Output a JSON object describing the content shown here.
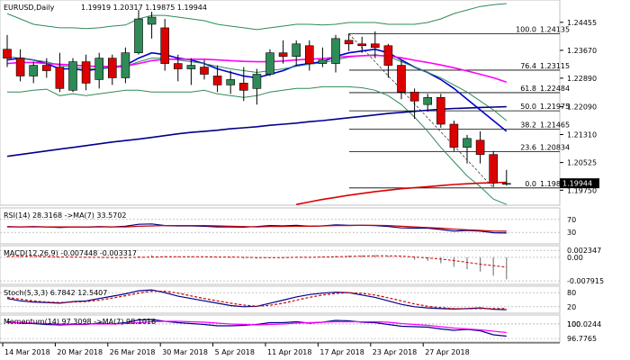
{
  "chart_data": [
    {
      "type": "candlestick",
      "symbol": "EURUSD",
      "timeframe": "Daily",
      "header_title": "EURUSD,Daily",
      "header_ohlc": "1.19919 1.20317 1.19875 1.19944",
      "current_price": "1.19944",
      "ylim": [
        1.1938,
        1.2503
      ],
      "y_ticks": [
        {
          "value": 1.24455,
          "label": "1.24455"
        },
        {
          "value": 1.2367,
          "label": "1.23670"
        },
        {
          "value": 1.2289,
          "label": "1.22890"
        },
        {
          "value": 1.2209,
          "label": "1.22090"
        },
        {
          "value": 1.2131,
          "label": "1.21310"
        },
        {
          "value": 1.20525,
          "label": "1.20525"
        },
        {
          "value": 1.1975,
          "label": "1.19750"
        }
      ],
      "x_ticks": [
        "14 Mar 2018",
        "20 Mar 2018",
        "26 Mar 2018",
        "30 Mar 2018",
        "5 Apr 2018",
        "11 Apr 2018",
        "17 Apr 2018",
        "23 Apr 2018",
        "27 Apr 2018"
      ],
      "candles": [
        {
          "o": 1.237,
          "h": 1.241,
          "l": 1.232,
          "c": 1.2345
        },
        {
          "o": 1.2345,
          "h": 1.237,
          "l": 1.228,
          "c": 1.2295
        },
        {
          "o": 1.2295,
          "h": 1.2335,
          "l": 1.2275,
          "c": 1.2325
        },
        {
          "o": 1.2325,
          "h": 1.2345,
          "l": 1.229,
          "c": 1.231
        },
        {
          "o": 1.232,
          "h": 1.236,
          "l": 1.225,
          "c": 1.226
        },
        {
          "o": 1.2255,
          "h": 1.2345,
          "l": 1.225,
          "c": 1.2335
        },
        {
          "o": 1.2335,
          "h": 1.2355,
          "l": 1.2255,
          "c": 1.2275
        },
        {
          "o": 1.2285,
          "h": 1.236,
          "l": 1.226,
          "c": 1.2345
        },
        {
          "o": 1.2345,
          "h": 1.2355,
          "l": 1.227,
          "c": 1.229
        },
        {
          "o": 1.229,
          "h": 1.2375,
          "l": 1.2275,
          "c": 1.236
        },
        {
          "o": 1.236,
          "h": 1.248,
          "l": 1.2355,
          "c": 1.2455
        },
        {
          "o": 1.244,
          "h": 1.2475,
          "l": 1.24,
          "c": 1.246
        },
        {
          "o": 1.243,
          "h": 1.2455,
          "l": 1.231,
          "c": 1.233
        },
        {
          "o": 1.233,
          "h": 1.2355,
          "l": 1.228,
          "c": 1.2315
        },
        {
          "o": 1.2315,
          "h": 1.2345,
          "l": 1.227,
          "c": 1.2325
        },
        {
          "o": 1.232,
          "h": 1.234,
          "l": 1.2285,
          "c": 1.23
        },
        {
          "o": 1.2295,
          "h": 1.2325,
          "l": 1.225,
          "c": 1.227
        },
        {
          "o": 1.227,
          "h": 1.231,
          "l": 1.2245,
          "c": 1.2285
        },
        {
          "o": 1.2275,
          "h": 1.232,
          "l": 1.2225,
          "c": 1.2255
        },
        {
          "o": 1.226,
          "h": 1.2315,
          "l": 1.2215,
          "c": 1.23
        },
        {
          "o": 1.23,
          "h": 1.237,
          "l": 1.2295,
          "c": 1.236
        },
        {
          "o": 1.236,
          "h": 1.2395,
          "l": 1.233,
          "c": 1.235
        },
        {
          "o": 1.235,
          "h": 1.2395,
          "l": 1.2325,
          "c": 1.2385
        },
        {
          "o": 1.238,
          "h": 1.2395,
          "l": 1.231,
          "c": 1.233
        },
        {
          "o": 1.233,
          "h": 1.2375,
          "l": 1.232,
          "c": 1.234
        },
        {
          "o": 1.233,
          "h": 1.241,
          "l": 1.2305,
          "c": 1.24
        },
        {
          "o": 1.2395,
          "h": 1.2414,
          "l": 1.2365,
          "c": 1.2385
        },
        {
          "o": 1.2385,
          "h": 1.2405,
          "l": 1.236,
          "c": 1.238
        },
        {
          "o": 1.2385,
          "h": 1.242,
          "l": 1.2345,
          "c": 1.2375
        },
        {
          "o": 1.238,
          "h": 1.2385,
          "l": 1.229,
          "c": 1.2325
        },
        {
          "o": 1.2325,
          "h": 1.234,
          "l": 1.223,
          "c": 1.225
        },
        {
          "o": 1.225,
          "h": 1.226,
          "l": 1.2175,
          "c": 1.2225
        },
        {
          "o": 1.2215,
          "h": 1.2245,
          "l": 1.2195,
          "c": 1.2235
        },
        {
          "o": 1.2235,
          "h": 1.2245,
          "l": 1.215,
          "c": 1.216
        },
        {
          "o": 1.216,
          "h": 1.217,
          "l": 1.2085,
          "c": 1.2095
        },
        {
          "o": 1.2095,
          "h": 1.213,
          "l": 1.205,
          "c": 1.212
        },
        {
          "o": 1.2115,
          "h": 1.214,
          "l": 1.205,
          "c": 1.2075
        },
        {
          "o": 1.2075,
          "h": 1.2085,
          "l": 1.1984,
          "c": 1.1995
        },
        {
          "o": 1.1992,
          "h": 1.2032,
          "l": 1.1988,
          "c": 1.1994
        }
      ],
      "fibonacci": [
        {
          "label": "100.0",
          "value": 1.24135,
          "text": "1.24135"
        },
        {
          "label": "76.4",
          "value": 1.23115,
          "text": "1.23115"
        },
        {
          "label": "61.8",
          "value": 1.22484,
          "text": "1.22484"
        },
        {
          "label": "50.0",
          "value": 1.21975,
          "text": "1.21975"
        },
        {
          "label": "38.2",
          "value": 1.21465,
          "text": "1.21465"
        },
        {
          "label": "23.6",
          "value": 1.20834,
          "text": "1.20834"
        },
        {
          "label": "0.0",
          "value": 1.19814,
          "text": "1.19814"
        }
      ],
      "overlays": [
        {
          "color": "#2e8b57",
          "values": [
            1.247,
            1.2455,
            1.244,
            1.2435,
            1.243,
            1.243,
            1.2428,
            1.243,
            1.2435,
            1.2438,
            1.2455,
            1.2465,
            1.2465,
            1.246,
            1.2455,
            1.245,
            1.244,
            1.2435,
            1.243,
            1.2425,
            1.243,
            1.2435,
            1.244,
            1.244,
            1.2438,
            1.244,
            1.2445,
            1.2445,
            1.2445,
            1.244,
            1.244,
            1.244,
            1.2445,
            1.2455,
            1.247,
            1.248,
            1.249,
            1.2495,
            1.2498
          ]
        },
        {
          "color": "#2e8b57",
          "values": [
            1.225,
            1.225,
            1.2255,
            1.2258,
            1.224,
            1.2245,
            1.224,
            1.2245,
            1.225,
            1.2255,
            1.2255,
            1.225,
            1.225,
            1.225,
            1.225,
            1.2255,
            1.2245,
            1.224,
            1.2235,
            1.224,
            1.225,
            1.2255,
            1.226,
            1.226,
            1.2265,
            1.2265,
            1.2265,
            1.2262,
            1.2255,
            1.224,
            1.2215,
            1.218,
            1.214,
            1.2095,
            1.2055,
            1.2015,
            1.1985,
            1.195,
            1.1935
          ]
        },
        {
          "color": "#0000cd",
          "values": [
            1.234,
            1.2345,
            1.234,
            1.233,
            1.2315,
            1.2315,
            1.231,
            1.2315,
            1.232,
            1.2325,
            1.2345,
            1.236,
            1.2355,
            1.2345,
            1.234,
            1.233,
            1.2315,
            1.2305,
            1.2295,
            1.229,
            1.23,
            1.231,
            1.2325,
            1.233,
            1.2335,
            1.235,
            1.236,
            1.2365,
            1.237,
            1.236,
            1.234,
            1.232,
            1.2305,
            1.2285,
            1.226,
            1.223,
            1.22,
            1.217,
            1.214
          ]
        },
        {
          "color": "#2e8b57",
          "values": [
            1.235,
            1.2345,
            1.234,
            1.2335,
            1.2325,
            1.232,
            1.2315,
            1.2315,
            1.2318,
            1.2322,
            1.2335,
            1.2345,
            1.2345,
            1.234,
            1.2335,
            1.233,
            1.2322,
            1.2315,
            1.231,
            1.2305,
            1.231,
            1.2315,
            1.2322,
            1.2328,
            1.2332,
            1.234,
            1.2348,
            1.2352,
            1.2355,
            1.235,
            1.2335,
            1.232,
            1.2305,
            1.229,
            1.227,
            1.225,
            1.2225,
            1.22,
            1.217
          ]
        },
        {
          "color": "#ff00ff",
          "values": [
            1.233,
            1.2333,
            1.2333,
            1.233,
            1.2328,
            1.2326,
            1.2323,
            1.2322,
            1.2322,
            1.2323,
            1.233,
            1.2338,
            1.2342,
            1.2342,
            1.2342,
            1.2342,
            1.234,
            1.2338,
            1.2336,
            1.2335,
            1.2335,
            1.2337,
            1.234,
            1.2342,
            1.2344,
            1.2347,
            1.235,
            1.2352,
            1.2353,
            1.2351,
            1.2346,
            1.2339,
            1.2333,
            1.2326,
            1.2318,
            1.2309,
            1.23,
            1.229,
            1.2278
          ]
        },
        {
          "color": "#00008b",
          "values": [
            1.207,
            1.2075,
            1.208,
            1.2085,
            1.209,
            1.2095,
            1.21,
            1.2105,
            1.211,
            1.2114,
            1.2118,
            1.2123,
            1.2128,
            1.2133,
            1.2137,
            1.214,
            1.2143,
            1.2147,
            1.215,
            1.2153,
            1.2157,
            1.216,
            1.2163,
            1.2167,
            1.217,
            1.2174,
            1.2178,
            1.2182,
            1.2186,
            1.219,
            1.2193,
            1.2196,
            1.2199,
            1.2202,
            1.2204,
            1.2205,
            1.2207,
            1.2208,
            1.2209
          ]
        },
        {
          "color": "#dd0000",
          "values": [
            null,
            null,
            null,
            null,
            null,
            null,
            null,
            null,
            null,
            null,
            null,
            null,
            null,
            null,
            null,
            null,
            null,
            null,
            null,
            null,
            null,
            null,
            1.1935,
            1.1942,
            1.1949,
            1.1955,
            1.1961,
            1.1966,
            1.1971,
            1.1975,
            1.1979,
            1.1982,
            1.1985,
            1.1988,
            1.1991,
            1.1993,
            1.1995,
            1.1996,
            1.1997
          ]
        }
      ]
    },
    {
      "type": "line",
      "name": "RSI",
      "title": "RSI(14) 28.3168 ->MA(7) 33.5702",
      "levels": [
        {
          "value": 70,
          "label": "70"
        },
        {
          "value": 30,
          "label": "30"
        }
      ],
      "ylim": [
        0,
        100
      ],
      "series": [
        {
          "color": "#00008b",
          "values": [
            48,
            47,
            48,
            47,
            45,
            47,
            46,
            48,
            47,
            49,
            55,
            56,
            51,
            50,
            50,
            49,
            47,
            47,
            46,
            48,
            51,
            50,
            52,
            49,
            50,
            53,
            52,
            52,
            51,
            48,
            44,
            43,
            43,
            39,
            34,
            36,
            34,
            29,
            28
          ]
        },
        {
          "color": "#cc0000",
          "values": [
            47,
            47,
            47,
            47,
            47,
            47,
            46,
            47,
            47,
            47,
            49,
            50,
            51,
            51,
            51,
            51,
            50,
            49,
            48,
            47,
            48,
            48,
            49,
            49,
            50,
            51,
            51,
            52,
            52,
            51,
            49,
            47,
            45,
            43,
            40,
            38,
            36,
            34,
            33.6
          ]
        }
      ]
    },
    {
      "type": "bar",
      "name": "MACD",
      "title": "MACD(12,26,9) -0.007448 -0.003317",
      "levels": [
        {
          "value": 0.002347,
          "label": "0.002347"
        },
        {
          "value": 0,
          "label": "0.00"
        },
        {
          "value": -0.007915,
          "label": "-0.007915"
        }
      ],
      "ylim": [
        -0.0085,
        0.003
      ],
      "values": [
        0.0004,
        0.0003,
        0.0002,
        0.0001,
        -0.0002,
        -0.0001,
        -0.0002,
        -0.0001,
        -0.0002,
        0.0,
        0.0004,
        0.0007,
        0.0004,
        0.0003,
        0.0002,
        0.0001,
        -0.0001,
        -0.0002,
        -0.0004,
        -0.0004,
        -0.0002,
        -0.0001,
        0.0002,
        0.0002,
        0.0002,
        0.0005,
        0.0006,
        0.0007,
        0.0008,
        0.0004,
        -0.0002,
        -0.0008,
        -0.0012,
        -0.002,
        -0.0032,
        -0.004,
        -0.0048,
        -0.0062,
        -0.0074
      ],
      "signal": [
        0.0003,
        0.0003,
        0.0003,
        0.0002,
        0.0001,
        0.0001,
        0.0,
        0.0,
        -0.0001,
        -0.0001,
        0.0,
        0.0001,
        0.0002,
        0.0002,
        0.0002,
        0.0002,
        0.0001,
        0.0001,
        0.0,
        -0.0001,
        -0.0001,
        -0.0001,
        0.0,
        0.0,
        0.0001,
        0.0002,
        0.0003,
        0.0004,
        0.0005,
        0.0005,
        0.0004,
        0.0001,
        -0.0002,
        -0.0006,
        -0.0011,
        -0.0017,
        -0.0023,
        -0.0028,
        -0.0033
      ]
    },
    {
      "type": "line",
      "name": "Stoch",
      "title": "Stoch(5,3,3) 6.7842 12.5407",
      "levels": [
        {
          "value": 80,
          "label": "80"
        },
        {
          "value": 20,
          "label": "20"
        }
      ],
      "ylim": [
        0,
        100
      ],
      "series": [
        {
          "color": "#00008b",
          "values": [
            55,
            45,
            40,
            38,
            35,
            42,
            45,
            55,
            65,
            75,
            88,
            92,
            80,
            65,
            55,
            45,
            35,
            25,
            20,
            22,
            35,
            48,
            62,
            72,
            78,
            82,
            80,
            70,
            60,
            45,
            30,
            20,
            15,
            12,
            10,
            12,
            15,
            9,
            7
          ]
        },
        {
          "color": "#cc0000",
          "values": [
            60,
            52,
            45,
            40,
            38,
            40,
            42,
            48,
            57,
            67,
            78,
            86,
            86,
            78,
            66,
            55,
            45,
            35,
            27,
            22,
            26,
            35,
            48,
            60,
            70,
            77,
            80,
            77,
            70,
            58,
            45,
            32,
            22,
            16,
            12,
            11,
            12,
            12,
            12.5
          ]
        }
      ]
    },
    {
      "type": "line",
      "name": "Momentum",
      "title": "Momentum(14) 97.3098 ->MA(7) 98.1016",
      "levels": [
        {
          "value": 100.0244,
          "label": "100.0244"
        },
        {
          "value": 100,
          "label": "100"
        },
        {
          "value": 96.7765,
          "label": "96.7765"
        }
      ],
      "ylim": [
        96.4,
        101.6
      ],
      "series": [
        {
          "color": "#00008b",
          "values": [
            100.5,
            100.2,
            100.1,
            99.9,
            99.8,
            99.9,
            99.9,
            100.2,
            100.0,
            100.3,
            100.9,
            101.0,
            100.6,
            100.3,
            100.1,
            99.9,
            99.6,
            99.6,
            99.7,
            99.9,
            100.3,
            100.3,
            100.5,
            100.2,
            100.4,
            100.8,
            100.7,
            100.4,
            100.3,
            99.9,
            99.5,
            99.4,
            99.3,
            98.9,
            98.6,
            98.8,
            98.5,
            97.6,
            97.3
          ]
        },
        {
          "color": "#ff00ff",
          "values": [
            100.3,
            100.3,
            100.2,
            100.1,
            100.0,
            100.0,
            100.0,
            100.0,
            100.0,
            100.1,
            100.3,
            100.5,
            100.6,
            100.6,
            100.5,
            100.4,
            100.2,
            100.0,
            99.9,
            99.8,
            99.9,
            100.0,
            100.2,
            100.3,
            100.4,
            100.5,
            100.5,
            100.5,
            100.5,
            100.4,
            100.1,
            99.9,
            99.7,
            99.4,
            99.1,
            98.9,
            98.7,
            98.4,
            98.1
          ]
        }
      ]
    }
  ],
  "colors": {
    "bull": "#2e8b57",
    "bear": "#dd0000",
    "price_tag_bg": "#000000",
    "price_tag_text": "#ffffff"
  }
}
